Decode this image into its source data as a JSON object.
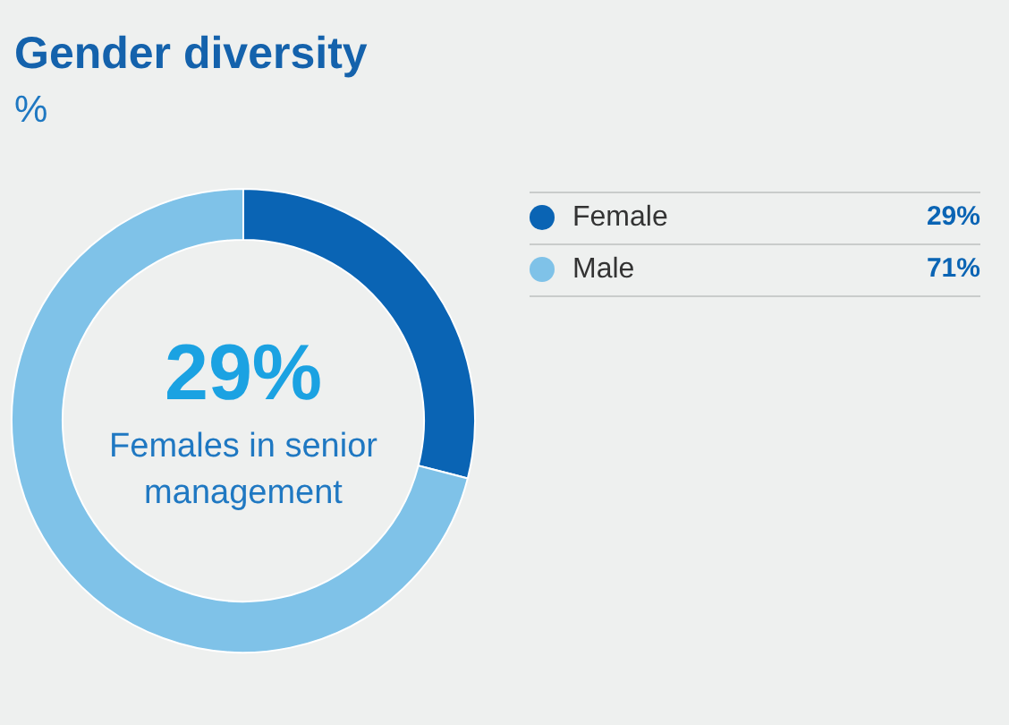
{
  "chart_data": {
    "type": "donut",
    "title": "Gender diversity",
    "subtitle": "%",
    "categories": [
      "Female",
      "Male"
    ],
    "values": [
      29,
      71
    ],
    "colors": [
      "#0a64b4",
      "#7fc2e8"
    ],
    "value_labels": [
      "29%",
      "71%"
    ],
    "legend": "right",
    "annotations": [
      "29%",
      "Females in senior management"
    ]
  }
}
